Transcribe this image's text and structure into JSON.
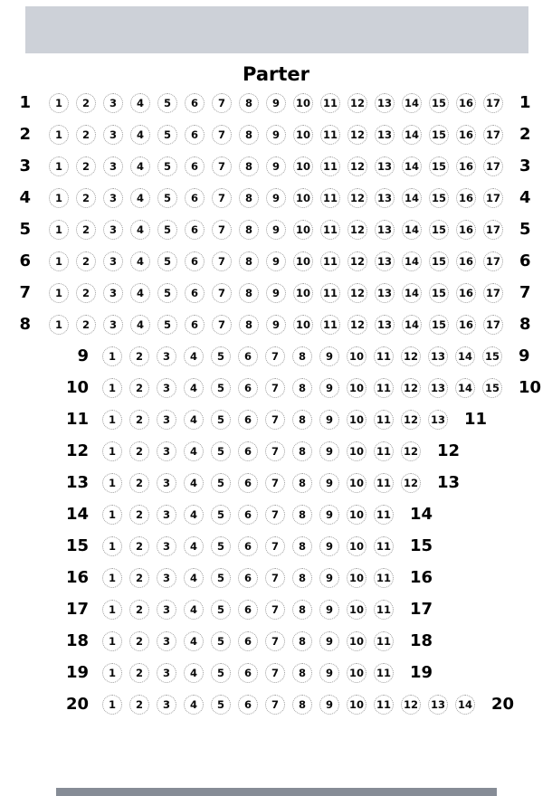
{
  "title": "Parter",
  "colors": {
    "stage_bar": "#cdd1d8",
    "bottom_bar": "#868c96",
    "seat_border": "#999999",
    "text": "#000000",
    "background": "#ffffff"
  },
  "rows": [
    {
      "label": "1",
      "offset": false,
      "seats": [
        1,
        2,
        3,
        4,
        5,
        6,
        7,
        8,
        9,
        10,
        11,
        12,
        13,
        14,
        15,
        16,
        17
      ]
    },
    {
      "label": "2",
      "offset": false,
      "seats": [
        1,
        2,
        3,
        4,
        5,
        6,
        7,
        8,
        9,
        10,
        11,
        12,
        13,
        14,
        15,
        16,
        17
      ]
    },
    {
      "label": "3",
      "offset": false,
      "seats": [
        1,
        2,
        3,
        4,
        5,
        6,
        7,
        8,
        9,
        10,
        11,
        12,
        13,
        14,
        15,
        16,
        17
      ]
    },
    {
      "label": "4",
      "offset": false,
      "seats": [
        1,
        2,
        3,
        4,
        5,
        6,
        7,
        8,
        9,
        10,
        11,
        12,
        13,
        14,
        15,
        16,
        17
      ]
    },
    {
      "label": "5",
      "offset": false,
      "seats": [
        1,
        2,
        3,
        4,
        5,
        6,
        7,
        8,
        9,
        10,
        11,
        12,
        13,
        14,
        15,
        16,
        17
      ]
    },
    {
      "label": "6",
      "offset": false,
      "seats": [
        1,
        2,
        3,
        4,
        5,
        6,
        7,
        8,
        9,
        10,
        11,
        12,
        13,
        14,
        15,
        16,
        17
      ]
    },
    {
      "label": "7",
      "offset": false,
      "seats": [
        1,
        2,
        3,
        4,
        5,
        6,
        7,
        8,
        9,
        10,
        11,
        12,
        13,
        14,
        15,
        16,
        17
      ]
    },
    {
      "label": "8",
      "offset": false,
      "seats": [
        1,
        2,
        3,
        4,
        5,
        6,
        7,
        8,
        9,
        10,
        11,
        12,
        13,
        14,
        15,
        16,
        17
      ]
    },
    {
      "label": "9",
      "offset": true,
      "seats": [
        1,
        2,
        3,
        4,
        5,
        6,
        7,
        8,
        9,
        10,
        11,
        12,
        13,
        14,
        15
      ]
    },
    {
      "label": "10",
      "offset": true,
      "seats": [
        1,
        2,
        3,
        4,
        5,
        6,
        7,
        8,
        9,
        10,
        11,
        12,
        13,
        14,
        15
      ]
    },
    {
      "label": "11",
      "offset": true,
      "seats": [
        1,
        2,
        3,
        4,
        5,
        6,
        7,
        8,
        9,
        10,
        11,
        12,
        13
      ]
    },
    {
      "label": "12",
      "offset": true,
      "seats": [
        1,
        2,
        3,
        4,
        5,
        6,
        7,
        8,
        9,
        10,
        11,
        12
      ]
    },
    {
      "label": "13",
      "offset": true,
      "seats": [
        1,
        2,
        3,
        4,
        5,
        6,
        7,
        8,
        9,
        10,
        11,
        12
      ]
    },
    {
      "label": "14",
      "offset": true,
      "seats": [
        1,
        2,
        3,
        4,
        5,
        6,
        7,
        8,
        9,
        10,
        11
      ]
    },
    {
      "label": "15",
      "offset": true,
      "seats": [
        1,
        2,
        3,
        4,
        5,
        6,
        7,
        8,
        9,
        10,
        11
      ]
    },
    {
      "label": "16",
      "offset": true,
      "seats": [
        1,
        2,
        3,
        4,
        5,
        6,
        7,
        8,
        9,
        10,
        11
      ]
    },
    {
      "label": "17",
      "offset": true,
      "seats": [
        1,
        2,
        3,
        4,
        5,
        6,
        7,
        8,
        9,
        10,
        11
      ]
    },
    {
      "label": "18",
      "offset": true,
      "seats": [
        1,
        2,
        3,
        4,
        5,
        6,
        7,
        8,
        9,
        10,
        11
      ]
    },
    {
      "label": "19",
      "offset": true,
      "seats": [
        1,
        2,
        3,
        4,
        5,
        6,
        7,
        8,
        9,
        10,
        11
      ]
    },
    {
      "label": "20",
      "offset": true,
      "seats": [
        1,
        2,
        3,
        4,
        5,
        6,
        7,
        8,
        9,
        10,
        11,
        12,
        13,
        14
      ]
    }
  ]
}
